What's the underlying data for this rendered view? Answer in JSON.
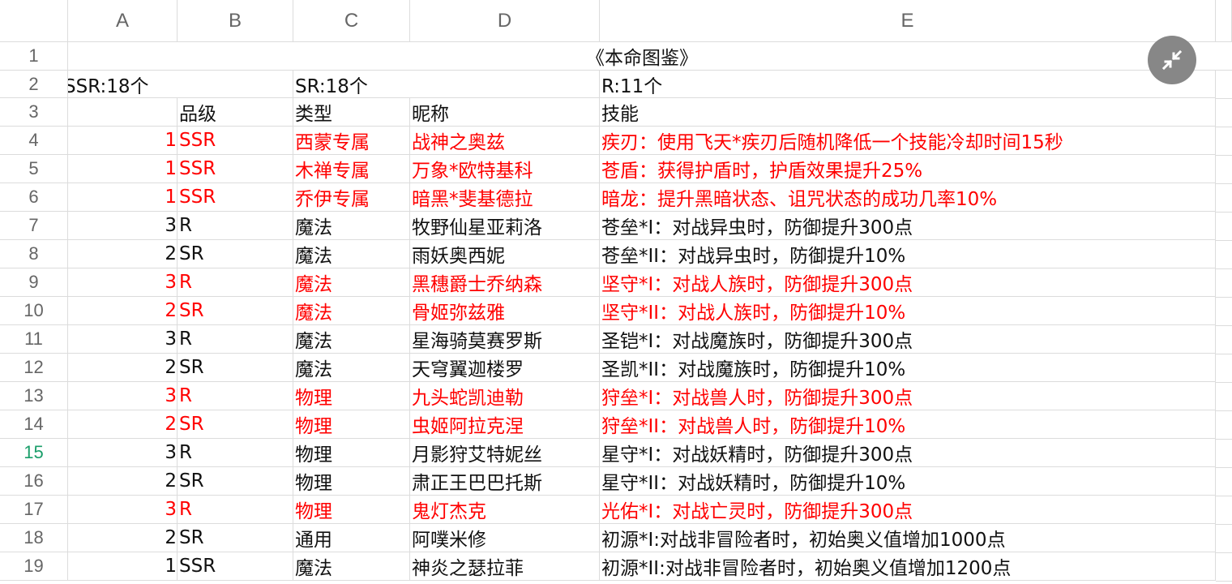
{
  "columns": [
    "A",
    "B",
    "C",
    "D",
    "E"
  ],
  "title": "《本命图鉴》",
  "counts": {
    "ssr": "SSR:18个",
    "sr": "SR:18个",
    "r": "R:11个"
  },
  "headers": {
    "grade": "品级",
    "type": "类型",
    "name": "昵称",
    "skill": "技能"
  },
  "active_row": 15,
  "colors": {
    "highlight": "#ff0000",
    "active_row_number": "#1a9e6a",
    "fab": "#878787"
  },
  "fab_icon": "collapse-arrows-icon",
  "rows": [
    {
      "num": "1",
      "grade": "SSR",
      "type": "西蒙专属",
      "name": "战神之奥兹",
      "skill": "疾刃：使用飞天*疾刃后随机降低一个技能冷却时间15秒",
      "red": true
    },
    {
      "num": "1",
      "grade": "SSR",
      "type": "木禅专属",
      "name": "万象*欧特基科",
      "skill": "苍盾：获得护盾时，护盾效果提升25%",
      "red": true
    },
    {
      "num": "1",
      "grade": "SSR",
      "type": "乔伊专属",
      "name": "暗黑*斐基德拉",
      "skill": "暗龙：提升黑暗状态、诅咒状态的成功几率10%",
      "red": true
    },
    {
      "num": "3",
      "grade": "R",
      "type": "魔法",
      "name": "牧野仙星亚莉洛",
      "skill": "苍垒*I：对战异虫时，防御提升300点",
      "red": false
    },
    {
      "num": "2",
      "grade": "SR",
      "type": "魔法",
      "name": "雨妖奥西妮",
      "skill": "苍垒*II：对战异虫时，防御提升10%",
      "red": false
    },
    {
      "num": "3",
      "grade": "R",
      "type": "魔法",
      "name": "黑穗爵士乔纳森",
      "skill": "坚守*I：对战人族时，防御提升300点",
      "red": true
    },
    {
      "num": "2",
      "grade": "SR",
      "type": "魔法",
      "name": "骨姬弥兹雅",
      "skill": "坚守*II：对战人族时，防御提升10%",
      "red": true
    },
    {
      "num": "3",
      "grade": "R",
      "type": "魔法",
      "name": "星海骑莫赛罗斯",
      "skill": "圣铠*I：对战魔族时，防御提升300点",
      "red": false
    },
    {
      "num": "2",
      "grade": "SR",
      "type": "魔法",
      "name": "天穹翼迦楼罗",
      "skill": "圣凯*II：对战魔族时，防御提升10%",
      "red": false
    },
    {
      "num": "3",
      "grade": "R",
      "type": "物理",
      "name": "九头蛇凯迪勒",
      "skill": "狩垒*I：对战兽人时，防御提升300点",
      "red": true
    },
    {
      "num": "2",
      "grade": "SR",
      "type": "物理",
      "name": "虫姬阿拉克涅",
      "skill": "狩垒*II：对战兽人时，防御提升10%",
      "red": true
    },
    {
      "num": "3",
      "grade": "R",
      "type": "物理",
      "name": "月影狩艾特妮丝",
      "skill": "星守*I：对战妖精时，防御提升300点",
      "red": false
    },
    {
      "num": "2",
      "grade": "SR",
      "type": "物理",
      "name": "肃正王巴巴托斯",
      "skill": "星守*II：对战妖精时，防御提升10%",
      "red": false
    },
    {
      "num": "3",
      "grade": "R",
      "type": "物理",
      "name": "鬼灯杰克",
      "skill": "光佑*I：对战亡灵时，防御提升300点",
      "red": true
    },
    {
      "num": "2",
      "grade": "SR",
      "type": "通用",
      "name": "阿噗米修",
      "skill": "初源*I:对战非冒险者时，初始奥义值增加1000点",
      "red": false
    },
    {
      "num": "1",
      "grade": "SSR",
      "type": "魔法",
      "name": "神炎之瑟拉菲",
      "skill": "初源*II:对战非冒险者时，初始奥义值增加1200点",
      "red": false
    }
  ]
}
